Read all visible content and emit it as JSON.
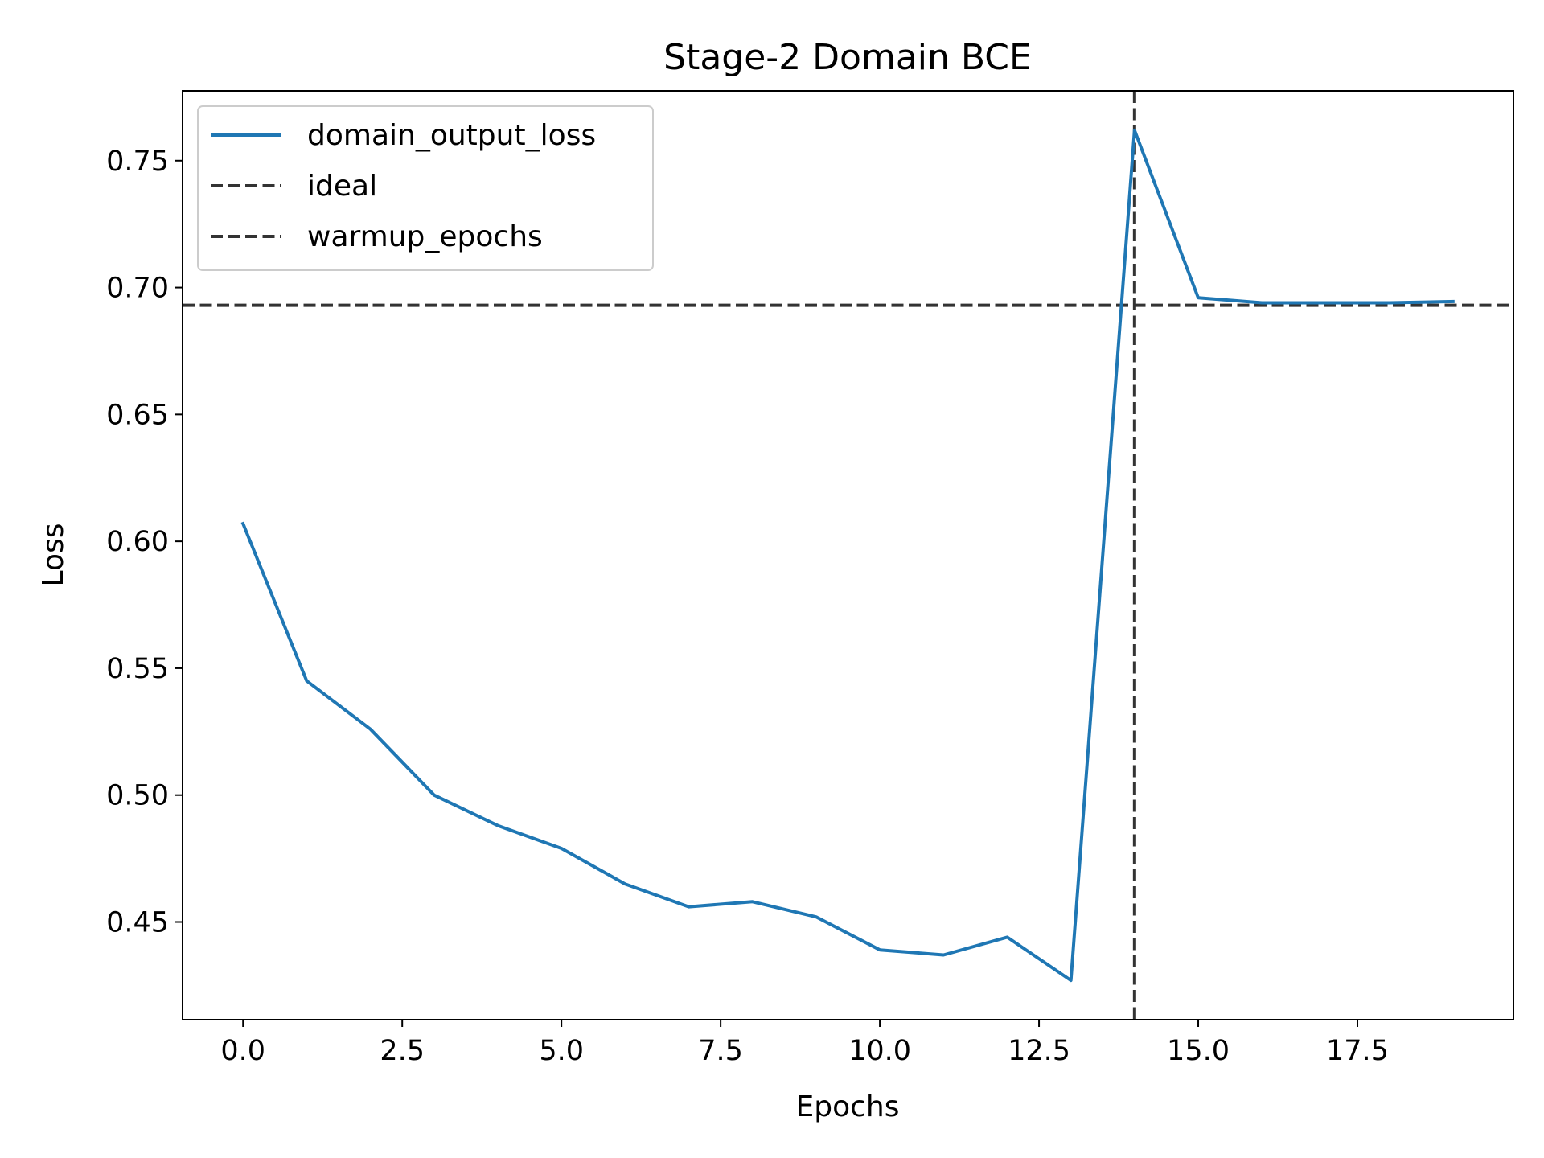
{
  "chart_data": {
    "type": "line",
    "title": "Stage-2 Domain BCE",
    "xlabel": "Epochs",
    "ylabel": "Loss",
    "xlim": [
      -0.95,
      19.95
    ],
    "ylim": [
      0.4115,
      0.7775
    ],
    "x_ticks": [
      0.0,
      2.5,
      5.0,
      7.5,
      10.0,
      12.5,
      15.0,
      17.5
    ],
    "x_tick_labels": [
      "0.0",
      "2.5",
      "5.0",
      "7.5",
      "10.0",
      "12.5",
      "15.0",
      "17.5"
    ],
    "y_ticks": [
      0.45,
      0.5,
      0.55,
      0.6,
      0.65,
      0.7,
      0.75
    ],
    "y_tick_labels": [
      "0.45",
      "0.50",
      "0.55",
      "0.60",
      "0.65",
      "0.70",
      "0.75"
    ],
    "grid": false,
    "legend_position": "top-left",
    "series": [
      {
        "name": "domain_output_loss",
        "color": "#1f77b4",
        "x": [
          0,
          1,
          2,
          3,
          4,
          5,
          6,
          7,
          8,
          9,
          10,
          11,
          12,
          13,
          14,
          15,
          16,
          17,
          18,
          19
        ],
        "y": [
          0.607,
          0.545,
          0.526,
          0.5,
          0.488,
          0.479,
          0.465,
          0.456,
          0.458,
          0.452,
          0.439,
          0.437,
          0.444,
          0.427,
          0.762,
          0.696,
          0.694,
          0.694,
          0.694,
          0.6945
        ]
      }
    ],
    "reference_lines": [
      {
        "name": "ideal",
        "orientation": "horizontal",
        "value": 0.693,
        "color": "#333333",
        "style": "dashed"
      },
      {
        "name": "warmup_epochs",
        "orientation": "vertical",
        "value": 14,
        "color": "#333333",
        "style": "dashed"
      }
    ]
  }
}
